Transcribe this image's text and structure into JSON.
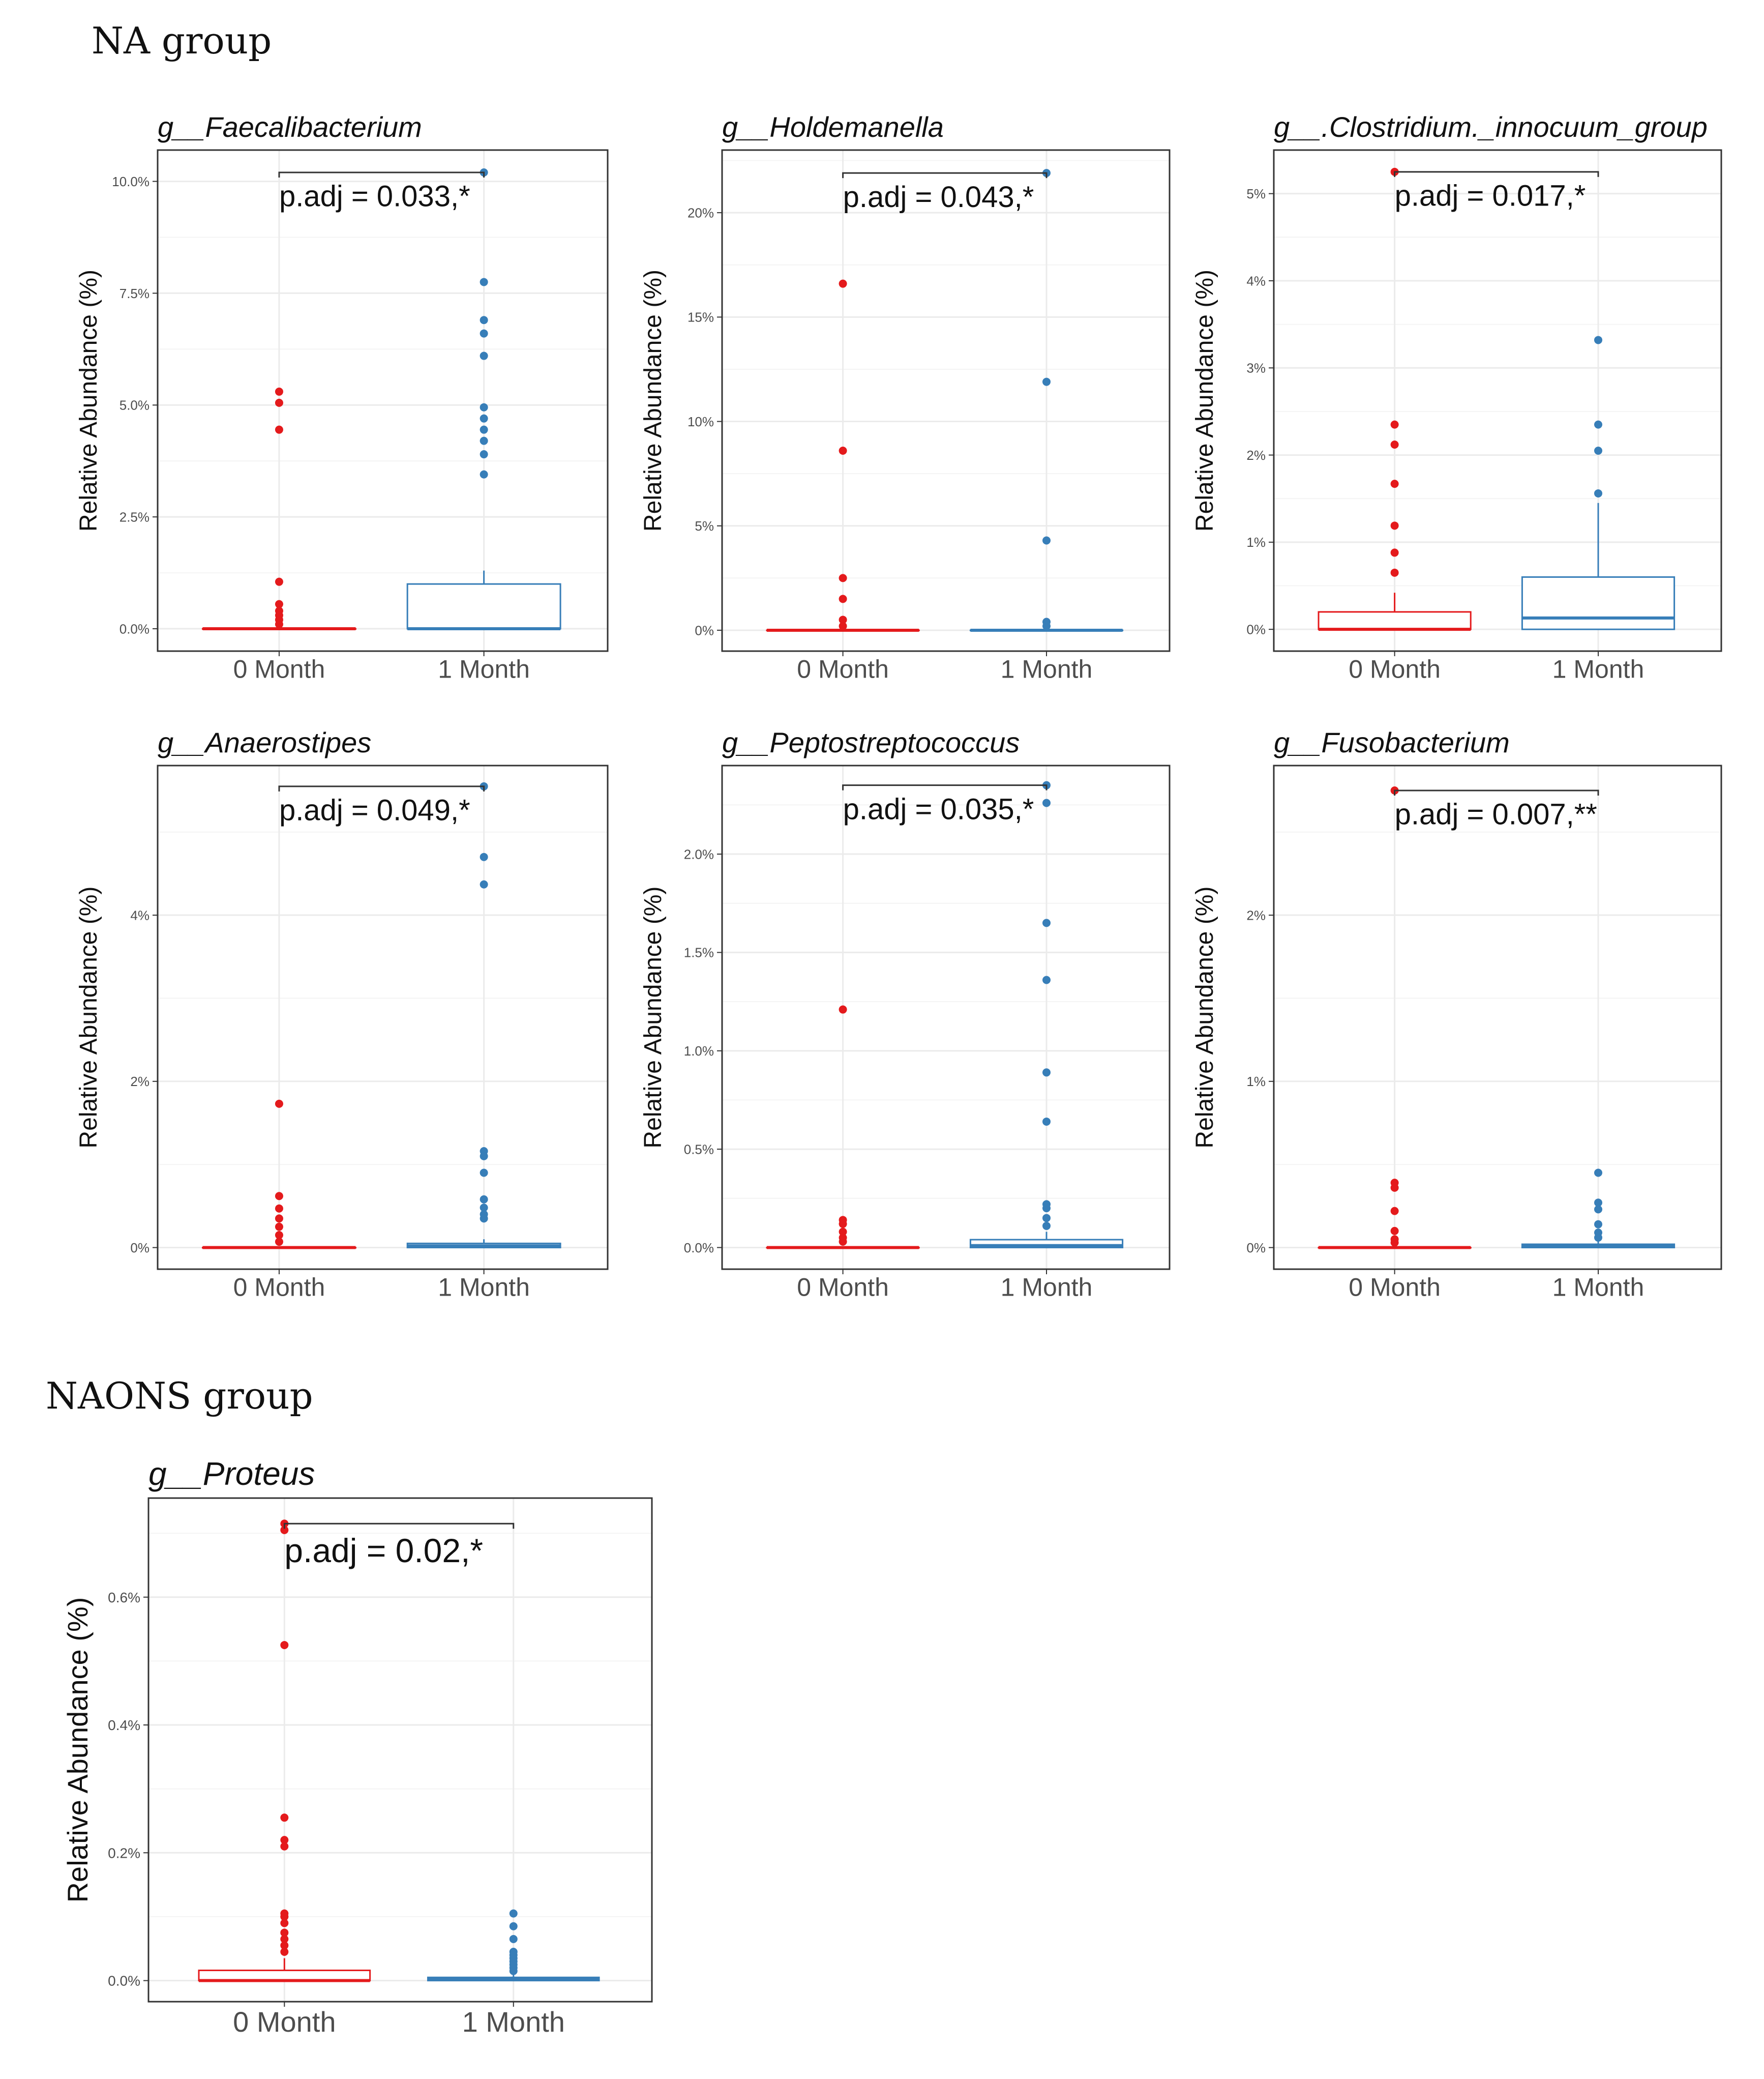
{
  "groups": [
    {
      "label": "NA group"
    },
    {
      "label": "NAONS group"
    }
  ],
  "colors": {
    "month0": "#e41a1c",
    "month1": "#377eb8",
    "grid": "#ebebeb",
    "frame": "#333333",
    "text": "#111111",
    "tick": "#4d4d4d"
  },
  "chart_data": [
    {
      "type": "box",
      "group": "NA group",
      "title": "g__Faecalibacterium",
      "ylabel": "Relative Abundance (%)",
      "categories": [
        "0 Month",
        "1 Month"
      ],
      "ylim": [
        -0.5,
        10.7
      ],
      "yticks": [
        0,
        2.5,
        5,
        7.5,
        10
      ],
      "ytick_labels": [
        "0.0%",
        "2.5%",
        "5.0%",
        "7.5%",
        "10.0%"
      ],
      "annotation": "p.adj = 0.033,*",
      "bracket_y": 10.2,
      "boxes": [
        {
          "q1": 0,
          "median": 0,
          "q3": 0,
          "whisker_low": 0,
          "whisker_high": 0,
          "outliers": [
            5.3,
            5.05,
            4.45,
            1.05,
            0.55,
            0.4,
            0.3,
            0.2,
            0.1
          ]
        },
        {
          "q1": 0,
          "median": 0,
          "q3": 1.0,
          "whisker_low": 0,
          "whisker_high": 1.3,
          "outliers": [
            10.2,
            7.75,
            6.9,
            6.6,
            6.1,
            4.95,
            4.7,
            4.45,
            4.2,
            3.9,
            3.45
          ]
        }
      ]
    },
    {
      "type": "box",
      "group": "NA group",
      "title": "g__Holdemanella",
      "ylabel": "Relative Abundance (%)",
      "categories": [
        "0 Month",
        "1 Month"
      ],
      "ylim": [
        -1,
        23
      ],
      "yticks": [
        0,
        5,
        10,
        15,
        20
      ],
      "ytick_labels": [
        "0%",
        "5%",
        "10%",
        "15%",
        "20%"
      ],
      "annotation": "p.adj = 0.043,*",
      "bracket_y": 21.9,
      "boxes": [
        {
          "q1": 0,
          "median": 0,
          "q3": 0,
          "whisker_low": 0,
          "whisker_high": 0,
          "outliers": [
            16.6,
            8.6,
            2.5,
            1.5,
            0.5,
            0.2
          ]
        },
        {
          "q1": 0,
          "median": 0,
          "q3": 0,
          "whisker_low": 0,
          "whisker_high": 0,
          "outliers": [
            21.9,
            11.9,
            4.3,
            0.4,
            0.2
          ]
        }
      ]
    },
    {
      "type": "box",
      "group": "NA group",
      "title": "g__.Clostridium._innocuum_group",
      "ylabel": "Relative Abundance (%)",
      "categories": [
        "0 Month",
        "1 Month"
      ],
      "ylim": [
        -0.25,
        5.5
      ],
      "yticks": [
        0,
        1,
        2,
        3,
        4,
        5
      ],
      "ytick_labels": [
        "0%",
        "1%",
        "2%",
        "3%",
        "4%",
        "5%"
      ],
      "annotation": "p.adj = 0.017,*",
      "bracket_y": 5.25,
      "boxes": [
        {
          "q1": 0,
          "median": 0,
          "q3": 0.2,
          "whisker_low": 0,
          "whisker_high": 0.42,
          "outliers": [
            5.25,
            2.35,
            2.12,
            1.67,
            1.19,
            0.88,
            0.65
          ]
        },
        {
          "q1": 0,
          "median": 0.13,
          "q3": 0.6,
          "whisker_low": 0,
          "whisker_high": 1.45,
          "outliers": [
            3.32,
            2.35,
            2.05,
            1.56
          ]
        }
      ]
    },
    {
      "type": "box",
      "group": "NA group",
      "title": "g__Anaerostipes",
      "ylabel": "Relative Abundance (%)",
      "categories": [
        "0 Month",
        "1 Month"
      ],
      "ylim": [
        -0.26,
        5.8
      ],
      "yticks": [
        0,
        2,
        4
      ],
      "ytick_labels": [
        "0%",
        "2%",
        "4%"
      ],
      "annotation": "p.adj = 0.049,*",
      "bracket_y": 5.55,
      "boxes": [
        {
          "q1": 0,
          "median": 0,
          "q3": 0,
          "whisker_low": 0,
          "whisker_high": 0,
          "outliers": [
            1.73,
            0.62,
            0.47,
            0.35,
            0.25,
            0.15,
            0.07
          ]
        },
        {
          "q1": 0,
          "median": 0.02,
          "q3": 0.05,
          "whisker_low": 0,
          "whisker_high": 0.1,
          "outliers": [
            5.55,
            4.7,
            4.37,
            1.16,
            1.1,
            0.9,
            0.58,
            0.48,
            0.4,
            0.35
          ]
        }
      ]
    },
    {
      "type": "box",
      "group": "NA group",
      "title": "g__Peptostreptococcus",
      "ylabel": "Relative Abundance (%)",
      "categories": [
        "0 Month",
        "1 Month"
      ],
      "ylim": [
        -0.11,
        2.45
      ],
      "yticks": [
        0,
        0.5,
        1.0,
        1.5,
        2.0
      ],
      "ytick_labels": [
        "0.0%",
        "0.5%",
        "1.0%",
        "1.5%",
        "2.0%"
      ],
      "annotation": "p.adj = 0.035,*",
      "bracket_y": 2.35,
      "boxes": [
        {
          "q1": 0,
          "median": 0,
          "q3": 0,
          "whisker_low": 0,
          "whisker_high": 0,
          "outliers": [
            1.21,
            0.14,
            0.12,
            0.08,
            0.05,
            0.03
          ]
        },
        {
          "q1": 0,
          "median": 0.01,
          "q3": 0.04,
          "whisker_low": 0,
          "whisker_high": 0.08,
          "outliers": [
            2.35,
            2.26,
            1.65,
            1.36,
            0.89,
            0.64,
            0.22,
            0.2,
            0.15,
            0.11
          ]
        }
      ]
    },
    {
      "type": "box",
      "group": "NA group",
      "title": "g__Fusobacterium",
      "ylabel": "Relative Abundance (%)",
      "categories": [
        "0 Month",
        "1 Month"
      ],
      "ylim": [
        -0.13,
        2.9
      ],
      "yticks": [
        0,
        1,
        2
      ],
      "ytick_labels": [
        "0%",
        "1%",
        "2%"
      ],
      "annotation": "p.adj = 0.007,**",
      "bracket_y": 2.75,
      "boxes": [
        {
          "q1": 0,
          "median": 0,
          "q3": 0,
          "whisker_low": 0,
          "whisker_high": 0,
          "outliers": [
            2.75,
            0.39,
            0.36,
            0.22,
            0.1,
            0.05,
            0.03
          ]
        },
        {
          "q1": 0,
          "median": 0.01,
          "q3": 0.02,
          "whisker_low": 0,
          "whisker_high": 0.05,
          "outliers": [
            0.45,
            0.27,
            0.23,
            0.14,
            0.09,
            0.06
          ]
        }
      ]
    },
    {
      "type": "box",
      "group": "NAONS group",
      "title": "g__Proteus",
      "ylabel": "Relative Abundance (%)",
      "categories": [
        "0 Month",
        "1 Month"
      ],
      "ylim": [
        -0.033,
        0.755
      ],
      "yticks": [
        0,
        0.2,
        0.4,
        0.6
      ],
      "ytick_labels": [
        "0.0%",
        "0.2%",
        "0.4%",
        "0.6%"
      ],
      "annotation": "p.adj = 0.02,*",
      "bracket_y": 0.715,
      "boxes": [
        {
          "q1": 0,
          "median": 0,
          "q3": 0.016,
          "whisker_low": 0,
          "whisker_high": 0.035,
          "outliers": [
            0.715,
            0.705,
            0.525,
            0.255,
            0.22,
            0.21,
            0.105,
            0.1,
            0.09,
            0.075,
            0.065,
            0.055,
            0.045
          ]
        },
        {
          "q1": 0,
          "median": 0.002,
          "q3": 0.005,
          "whisker_low": 0,
          "whisker_high": 0.01,
          "outliers": [
            0.105,
            0.085,
            0.065,
            0.045,
            0.04,
            0.035,
            0.03,
            0.025,
            0.02,
            0.015
          ]
        }
      ]
    }
  ]
}
